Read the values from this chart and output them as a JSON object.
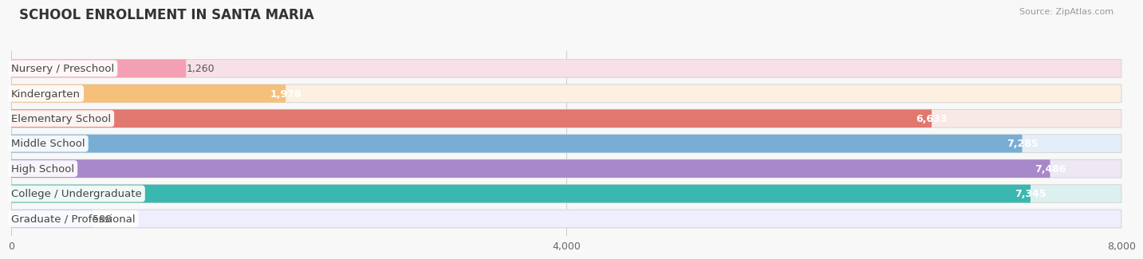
{
  "title": "SCHOOL ENROLLMENT IN SANTA MARIA",
  "source": "Source: ZipAtlas.com",
  "categories": [
    "Nursery / Preschool",
    "Kindergarten",
    "Elementary School",
    "Middle School",
    "High School",
    "College / Undergraduate",
    "Graduate / Professional"
  ],
  "values": [
    1260,
    1978,
    6633,
    7285,
    7486,
    7345,
    588
  ],
  "bar_colors": [
    "#f4a0b4",
    "#f5c07a",
    "#e07870",
    "#78aed4",
    "#a888c8",
    "#3ab8b0",
    "#c0c4f0"
  ],
  "bar_bg_colors": [
    "#f7e0e8",
    "#fdf0e0",
    "#f8e8e6",
    "#e4eef8",
    "#ede8f4",
    "#ddf0f0",
    "#eeeefc"
  ],
  "value_colors_inside": [
    "white",
    "white",
    "white",
    "white",
    "white",
    "white",
    "white"
  ],
  "xlim": [
    0,
    8000
  ],
  "xticks": [
    0,
    4000,
    8000
  ],
  "xtick_labels": [
    "0",
    "4,000",
    "8,000"
  ],
  "background_color": "#f8f8f8",
  "title_fontsize": 12,
  "label_fontsize": 9.5,
  "value_fontsize": 9
}
